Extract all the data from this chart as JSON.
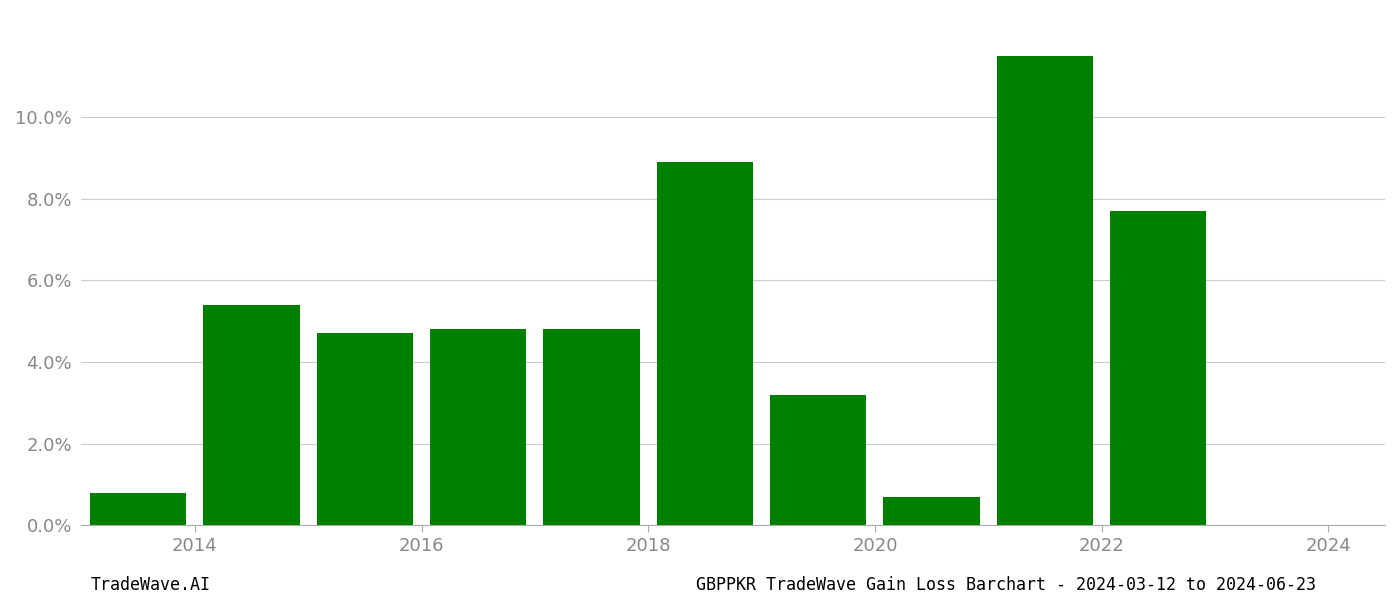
{
  "years": [
    2013.5,
    2014.5,
    2015.5,
    2016.5,
    2017.5,
    2018.5,
    2019.5,
    2020.5,
    2021.5,
    2022.5
  ],
  "values": [
    0.008,
    0.054,
    0.047,
    0.048,
    0.048,
    0.089,
    0.032,
    0.007,
    0.115,
    0.077
  ],
  "bar_color": "#008000",
  "background_color": "#ffffff",
  "grid_color": "#cccccc",
  "xlim": [
    2013.0,
    2024.5
  ],
  "ylim": [
    0,
    0.125
  ],
  "yticks": [
    0.0,
    0.02,
    0.04,
    0.06,
    0.08,
    0.1
  ],
  "xticks": [
    2014,
    2016,
    2018,
    2020,
    2022,
    2024
  ],
  "bottom_left_text": "TradeWave.AI",
  "bottom_right_text": "GBPPKR TradeWave Gain Loss Barchart - 2024-03-12 to 2024-06-23",
  "tick_label_color": "#888888",
  "bottom_text_color": "#000000",
  "bar_width": 0.85,
  "figsize": [
    14.0,
    6.0
  ],
  "dpi": 100
}
